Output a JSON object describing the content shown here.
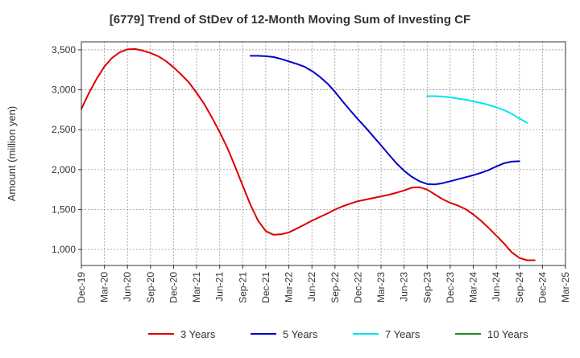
{
  "chart_data": {
    "type": "line",
    "title": "[6779]  Trend of StDev of 12-Month Moving Sum of Investing CF",
    "ylabel": "Amount (million yen)",
    "xlabel": "",
    "ylim": [
      800,
      3600
    ],
    "yticks": [
      1000,
      1500,
      2000,
      2500,
      3000,
      3500
    ],
    "ytick_labels": [
      "1,000",
      "1,500",
      "2,000",
      "2,500",
      "3,000",
      "3,500"
    ],
    "xtick_labels": [
      "Dec-19",
      "Mar-20",
      "Jun-20",
      "Sep-20",
      "Dec-20",
      "Mar-21",
      "Jun-21",
      "Sep-21",
      "Dec-21",
      "Mar-22",
      "Jun-22",
      "Sep-22",
      "Dec-22",
      "Mar-23",
      "Jun-23",
      "Sep-23",
      "Dec-23",
      "Mar-24",
      "Jun-24",
      "Sep-24",
      "Dec-24",
      "Mar-25"
    ],
    "grid": true,
    "legend_position": "bottom",
    "series": [
      {
        "name": "3 Years",
        "color": "#dd0000",
        "values": [
          2760,
          2960,
          3140,
          3290,
          3400,
          3470,
          3505,
          3510,
          3490,
          3460,
          3420,
          3360,
          3280,
          3190,
          3090,
          2960,
          2820,
          2650,
          2470,
          2270,
          2040,
          1800,
          1560,
          1360,
          1230,
          1185,
          1190,
          1215,
          1260,
          1310,
          1360,
          1405,
          1450,
          1500,
          1540,
          1575,
          1605,
          1625,
          1645,
          1665,
          1685,
          1710,
          1740,
          1775,
          1780,
          1750,
          1690,
          1630,
          1585,
          1550,
          1505,
          1440,
          1360,
          1270,
          1175,
          1075,
          965,
          895,
          865,
          865
        ]
      },
      {
        "name": "5 Years",
        "color": "#0000cc",
        "values": [
          null,
          null,
          null,
          null,
          null,
          null,
          null,
          null,
          null,
          null,
          null,
          null,
          null,
          null,
          null,
          null,
          null,
          null,
          null,
          null,
          null,
          null,
          3425,
          3425,
          3420,
          3410,
          3385,
          3355,
          3325,
          3290,
          3235,
          3165,
          3080,
          2975,
          2855,
          2740,
          2630,
          2525,
          2415,
          2305,
          2190,
          2080,
          1985,
          1910,
          1855,
          1820,
          1815,
          1830,
          1855,
          1880,
          1905,
          1930,
          1960,
          1995,
          2040,
          2080,
          2100,
          2105
        ]
      },
      {
        "name": "7 Years",
        "color": "#00e5ee",
        "values": [
          null,
          null,
          null,
          null,
          null,
          null,
          null,
          null,
          null,
          null,
          null,
          null,
          null,
          null,
          null,
          null,
          null,
          null,
          null,
          null,
          null,
          null,
          null,
          null,
          null,
          null,
          null,
          null,
          null,
          null,
          null,
          null,
          null,
          null,
          null,
          null,
          null,
          null,
          null,
          null,
          null,
          null,
          null,
          null,
          null,
          2920,
          2920,
          2915,
          2905,
          2890,
          2875,
          2855,
          2835,
          2810,
          2780,
          2745,
          2700,
          2640,
          2585
        ]
      },
      {
        "name": "10 Years",
        "color": "#228b22",
        "values": []
      }
    ]
  }
}
